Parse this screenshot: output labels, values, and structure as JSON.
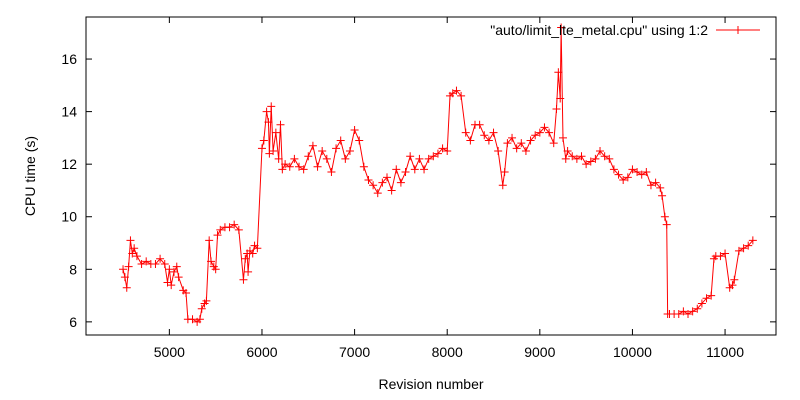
{
  "chart_data": {
    "type": "line",
    "title": "",
    "xlabel": "Revision number",
    "ylabel": "CPU time (s)",
    "xlim": [
      4100,
      11550
    ],
    "ylim": [
      5.5,
      17.6
    ],
    "x_ticks": [
      5000,
      6000,
      7000,
      8000,
      9000,
      10000,
      11000
    ],
    "y_ticks": [
      6,
      8,
      10,
      12,
      14,
      16
    ],
    "grid": false,
    "legend_position": "top-right",
    "series": [
      {
        "name": "\"auto/limit_lte_metal.cpu\" using 1:2",
        "color": "#ff0000",
        "marker": "plus",
        "x": [
          4500,
          4520,
          4540,
          4560,
          4580,
          4600,
          4620,
          4650,
          4700,
          4750,
          4800,
          4850,
          4900,
          4950,
          4980,
          5000,
          5020,
          5050,
          5080,
          5100,
          5150,
          5180,
          5200,
          5250,
          5300,
          5330,
          5350,
          5380,
          5400,
          5430,
          5450,
          5480,
          5500,
          5520,
          5550,
          5600,
          5650,
          5700,
          5750,
          5800,
          5820,
          5840,
          5850,
          5870,
          5900,
          5920,
          5950,
          6000,
          6020,
          6050,
          6070,
          6080,
          6100,
          6120,
          6150,
          6180,
          6200,
          6220,
          6250,
          6300,
          6350,
          6400,
          6450,
          6500,
          6550,
          6600,
          6650,
          6700,
          6750,
          6800,
          6850,
          6900,
          6950,
          7000,
          7050,
          7100,
          7150,
          7200,
          7250,
          7300,
          7350,
          7400,
          7450,
          7500,
          7550,
          7600,
          7650,
          7700,
          7750,
          7800,
          7850,
          7900,
          7950,
          8000,
          8030,
          8060,
          8100,
          8150,
          8200,
          8250,
          8300,
          8350,
          8400,
          8450,
          8500,
          8550,
          8600,
          8620,
          8650,
          8700,
          8750,
          8800,
          8850,
          8900,
          8950,
          9000,
          9050,
          9100,
          9150,
          9180,
          9200,
          9220,
          9230,
          9250,
          9280,
          9300,
          9350,
          9400,
          9450,
          9500,
          9550,
          9600,
          9650,
          9700,
          9750,
          9800,
          9850,
          9900,
          9950,
          10000,
          10050,
          10100,
          10150,
          10200,
          10250,
          10300,
          10320,
          10350,
          10370,
          10380,
          10400,
          10450,
          10500,
          10550,
          10600,
          10650,
          10700,
          10750,
          10800,
          10850,
          10880,
          10900,
          10950,
          11000,
          11050,
          11080,
          11100,
          11150,
          11200,
          11250,
          11300
        ],
        "y": [
          8.0,
          7.7,
          7.3,
          8.1,
          9.1,
          8.6,
          8.8,
          8.5,
          8.2,
          8.3,
          8.2,
          8.2,
          8.4,
          8.2,
          7.5,
          8.0,
          7.4,
          7.9,
          8.1,
          7.7,
          7.2,
          7.1,
          6.1,
          6.1,
          6.0,
          6.1,
          6.5,
          6.7,
          6.8,
          9.1,
          8.3,
          8.1,
          8.0,
          9.3,
          9.5,
          9.6,
          9.6,
          9.7,
          9.5,
          7.6,
          8.4,
          8.6,
          7.9,
          8.7,
          8.6,
          8.9,
          8.8,
          12.6,
          12.9,
          14.0,
          13.6,
          12.4,
          14.2,
          12.5,
          13.2,
          12.2,
          13.5,
          11.8,
          12.0,
          11.9,
          12.2,
          11.9,
          11.8,
          12.3,
          12.7,
          11.9,
          12.5,
          12.2,
          11.7,
          12.6,
          12.9,
          12.2,
          12.5,
          13.3,
          12.9,
          11.9,
          11.4,
          11.2,
          10.9,
          11.3,
          11.5,
          11.0,
          11.8,
          11.3,
          11.7,
          12.3,
          11.8,
          12.2,
          11.8,
          12.2,
          12.3,
          12.4,
          12.6,
          12.5,
          14.6,
          14.7,
          14.8,
          14.6,
          13.2,
          12.9,
          13.5,
          13.5,
          13.1,
          12.9,
          13.2,
          12.5,
          11.2,
          11.7,
          12.8,
          13.0,
          12.6,
          12.8,
          12.5,
          12.9,
          13.1,
          13.2,
          13.4,
          13.2,
          12.8,
          14.1,
          15.5,
          14.5,
          17.2,
          13.0,
          12.2,
          12.5,
          12.3,
          12.2,
          12.3,
          12.0,
          12.1,
          12.2,
          12.5,
          12.3,
          12.2,
          11.8,
          11.6,
          11.4,
          11.5,
          11.8,
          11.7,
          11.6,
          11.7,
          11.2,
          11.3,
          11.1,
          10.8,
          10.0,
          9.7,
          6.3,
          6.3,
          6.3,
          6.3,
          6.4,
          6.3,
          6.4,
          6.5,
          6.7,
          6.9,
          7.0,
          8.4,
          8.5,
          8.5,
          8.6,
          7.3,
          7.4,
          7.6,
          8.7,
          8.8,
          8.9,
          9.1
        ]
      }
    ]
  }
}
